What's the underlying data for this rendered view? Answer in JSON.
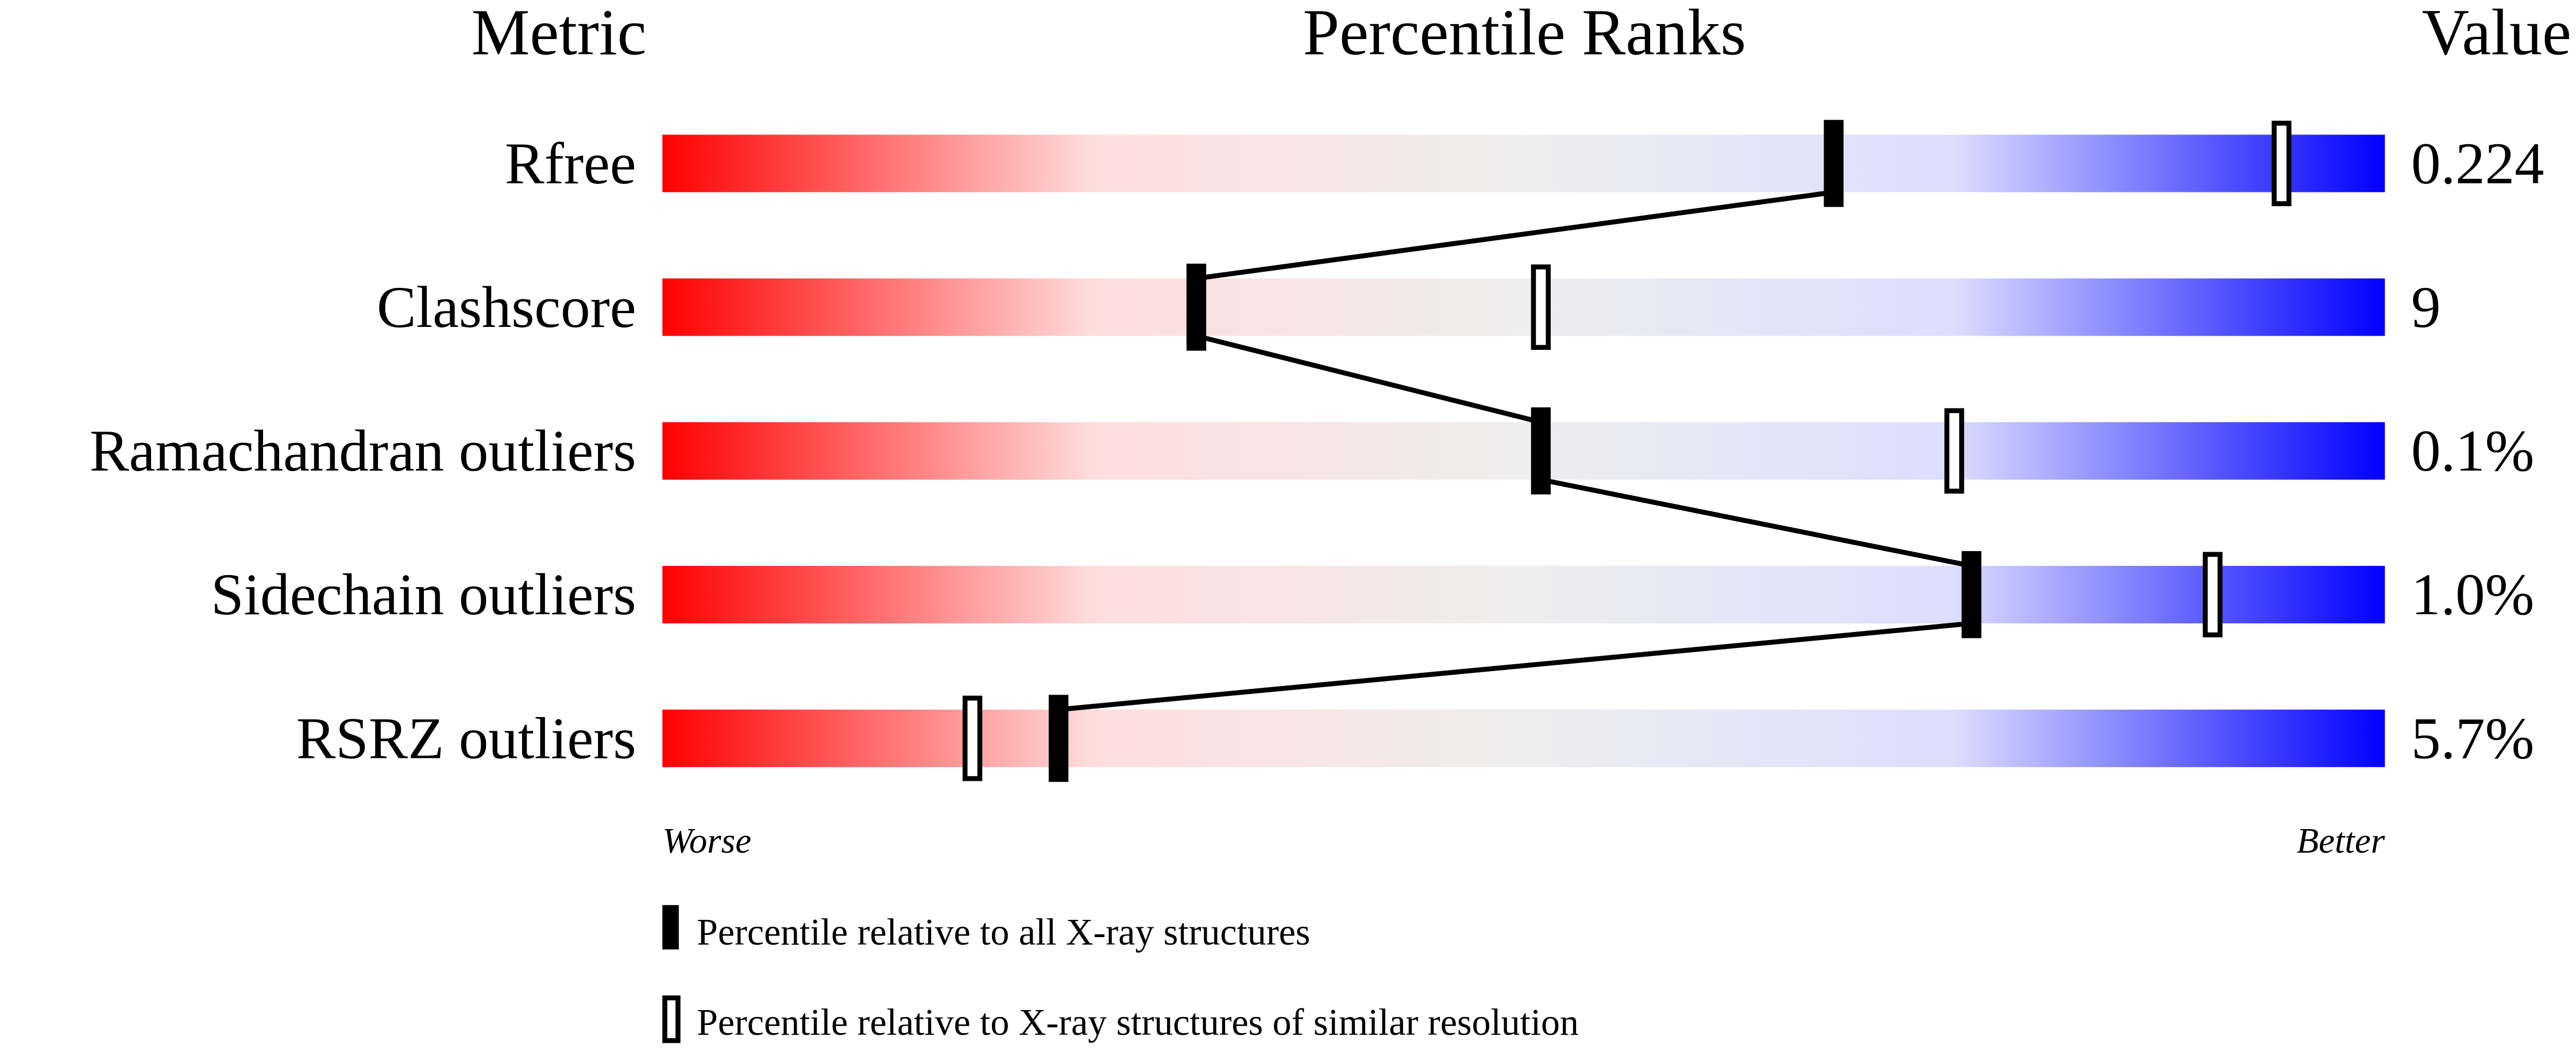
{
  "chart_data": {
    "type": "percentile-bar",
    "headers": {
      "metric": "Metric",
      "ranks": "Percentile Ranks",
      "value": "Value"
    },
    "xlim": [
      0,
      100
    ],
    "axis_labels": {
      "left": "Worse",
      "right": "Better"
    },
    "gradient_colors": [
      "#ff0000",
      "#ffdddd",
      "#eeeeee",
      "#ddddff",
      "#0000ff"
    ],
    "metrics": [
      {
        "name": "Rfree",
        "value": "0.224",
        "percentile_all": 68,
        "percentile_similar": 94
      },
      {
        "name": "Clashscore",
        "value": "9",
        "percentile_all": 31,
        "percentile_similar": 51
      },
      {
        "name": "Ramachandran outliers",
        "value": "0.1%",
        "percentile_all": 51,
        "percentile_similar": 75
      },
      {
        "name": "Sidechain outliers",
        "value": "1.0%",
        "percentile_all": 76,
        "percentile_similar": 90
      },
      {
        "name": "RSRZ outliers",
        "value": "5.7%",
        "percentile_all": 23,
        "percentile_similar": 18
      }
    ],
    "legend": [
      {
        "marker": "filled",
        "label": "Percentile relative to all X-ray structures"
      },
      {
        "marker": "open",
        "label": "Percentile relative to X-ray structures of similar resolution"
      }
    ]
  }
}
